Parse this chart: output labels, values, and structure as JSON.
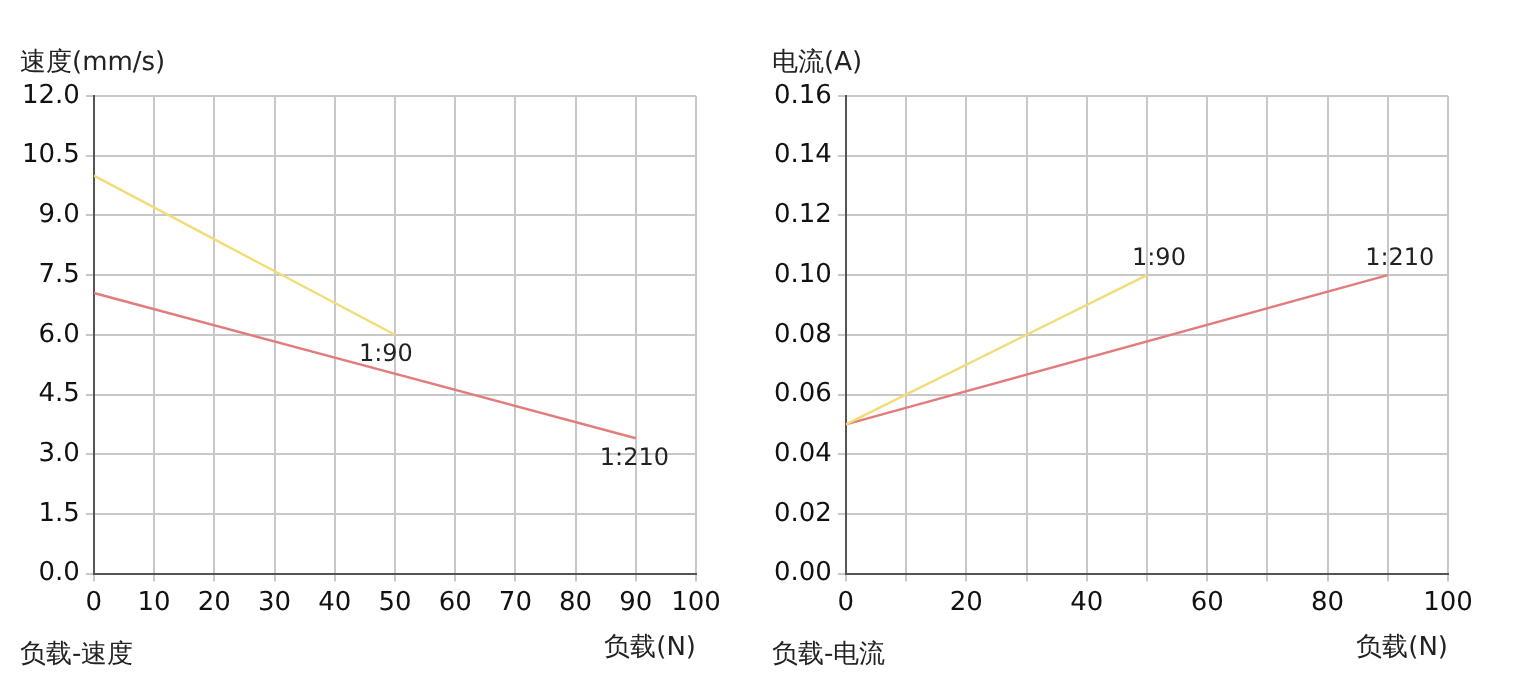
{
  "chart_data": [
    {
      "type": "line",
      "title": "负载-速度",
      "xlabel": "负载(N)",
      "ylabel": "速度(mm/s)",
      "xlim": [
        0,
        100
      ],
      "xticks": [
        0,
        10,
        20,
        30,
        40,
        50,
        60,
        70,
        80,
        90,
        100
      ],
      "ylim": [
        0,
        12
      ],
      "yticks": [
        {
          "value": 0,
          "label": "0.0"
        },
        1.5,
        {
          "value": 3,
          "label": "3.0"
        },
        4.5,
        {
          "value": 6,
          "label": "6.0"
        },
        7.5,
        {
          "value": 9,
          "label": "9.0"
        },
        10.5,
        {
          "value": 12,
          "label": "12.0"
        }
      ],
      "grid": true,
      "legend": false,
      "marker": "none",
      "line_style": "solid",
      "series": [
        {
          "name": "1:90",
          "color": "#f2dc74",
          "x": [
            0,
            50
          ],
          "values": [
            10,
            6
          ]
        },
        {
          "name": "1:210",
          "color": "#e27c7c",
          "x": [
            0,
            90
          ],
          "values": [
            7.05,
            3.4
          ]
        }
      ]
    },
    {
      "type": "line",
      "title": "负载-电流",
      "xlabel": "负载(N)",
      "ylabel": "电流(A)",
      "xlim": [
        0,
        100
      ],
      "xticks": [
        0,
        {
          "value": 10,
          "label": null
        },
        20,
        {
          "value": 30,
          "label": null
        },
        40,
        {
          "value": 50,
          "label": null
        },
        60,
        {
          "value": 70,
          "label": null
        },
        80,
        {
          "value": 90,
          "label": null
        },
        100
      ],
      "ylim": [
        0,
        0.16
      ],
      "yticks": [
        {
          "value": 0,
          "label": "0.00"
        },
        0.02,
        0.04,
        0.06,
        0.08,
        {
          "value": 0.1,
          "label": "0.10"
        },
        0.12,
        0.14,
        0.16
      ],
      "grid": true,
      "legend": false,
      "marker": "none",
      "line_style": "solid",
      "series": [
        {
          "name": "1:90",
          "color": "#f2dc74",
          "x": [
            0,
            50
          ],
          "values": [
            0.05,
            0.1
          ]
        },
        {
          "name": "1:210",
          "color": "#e27c7c",
          "x": [
            0,
            90
          ],
          "values": [
            0.05,
            0.1
          ]
        }
      ]
    }
  ]
}
